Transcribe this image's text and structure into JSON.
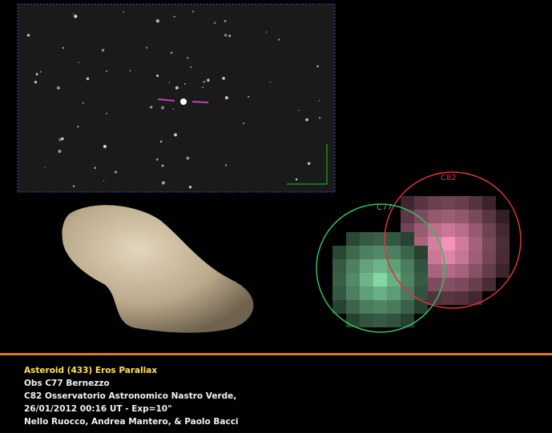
{
  "image": {
    "labels": {
      "right_observatory": "C82",
      "left_observatory": "C77"
    }
  },
  "caption": {
    "title": "Asteroid (433) Eros Parallax",
    "lines": [
      "Obs C77 Bernezzo",
      "C82 Osservatorio Astronomico Nastro Verde,",
      "26/01/2012  00:16 UT -  Exp=10\"",
      "Nello Ruocco, Andrea Mantero, & Paolo Bacci"
    ]
  }
}
